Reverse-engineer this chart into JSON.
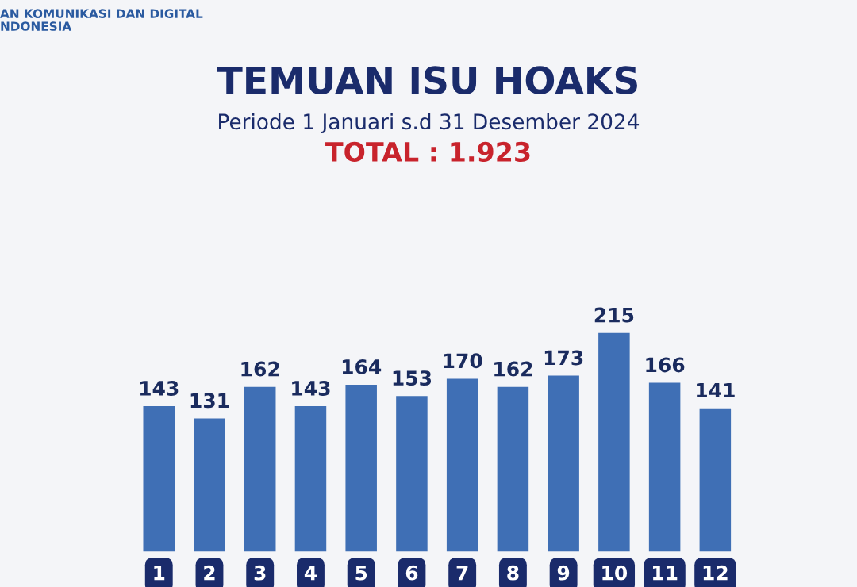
{
  "chart_data": {
    "type": "bar",
    "title": "TEMUAN ISU HOAKS",
    "subtitle": "Periode 1 Januari s.d 31 Desember 2024",
    "annotations": [
      "TOTAL : 1.923",
      "AN KOMUNIKASI DAN DIGITAL\nNDONESIA"
    ],
    "categories": [
      "1",
      "2",
      "3",
      "4",
      "5",
      "6",
      "7",
      "8",
      "9",
      "10",
      "11",
      "12"
    ],
    "values": [
      143,
      131,
      162,
      143,
      164,
      153,
      170,
      162,
      173,
      215,
      166,
      141
    ],
    "color": "#3f6fb5",
    "data_labels": true,
    "grid": false,
    "legend": false
  }
}
